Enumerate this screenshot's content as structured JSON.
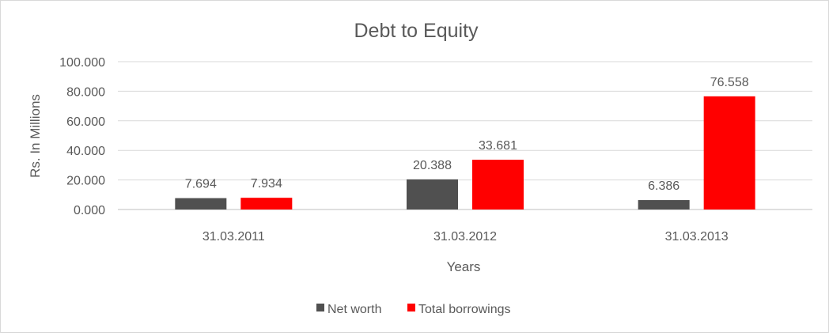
{
  "chart_data": {
    "type": "bar",
    "title": "Debt to Equity",
    "xlabel": "Years",
    "ylabel": "Rs. In Millions",
    "categories": [
      "31.03.2011",
      "31.03.2012",
      "31.03.2013"
    ],
    "series": [
      {
        "name": "Net worth",
        "color": "#505050",
        "values": [
          7.694,
          20.388,
          6.386
        ],
        "labels": [
          "7.694",
          "20.388",
          "6.386"
        ]
      },
      {
        "name": "Total borrowings",
        "color": "#ff0000",
        "values": [
          7.934,
          33.681,
          76.558
        ],
        "labels": [
          "7.934",
          "33.681",
          "76.558"
        ]
      }
    ],
    "ylim": [
      0,
      100
    ],
    "yticks": [
      0,
      20,
      40,
      60,
      80,
      100
    ],
    "ytick_labels": [
      "0.000",
      "20.000",
      "40.000",
      "60.000",
      "80.000",
      "100.000"
    ],
    "grid": true,
    "legend_position": "bottom"
  }
}
